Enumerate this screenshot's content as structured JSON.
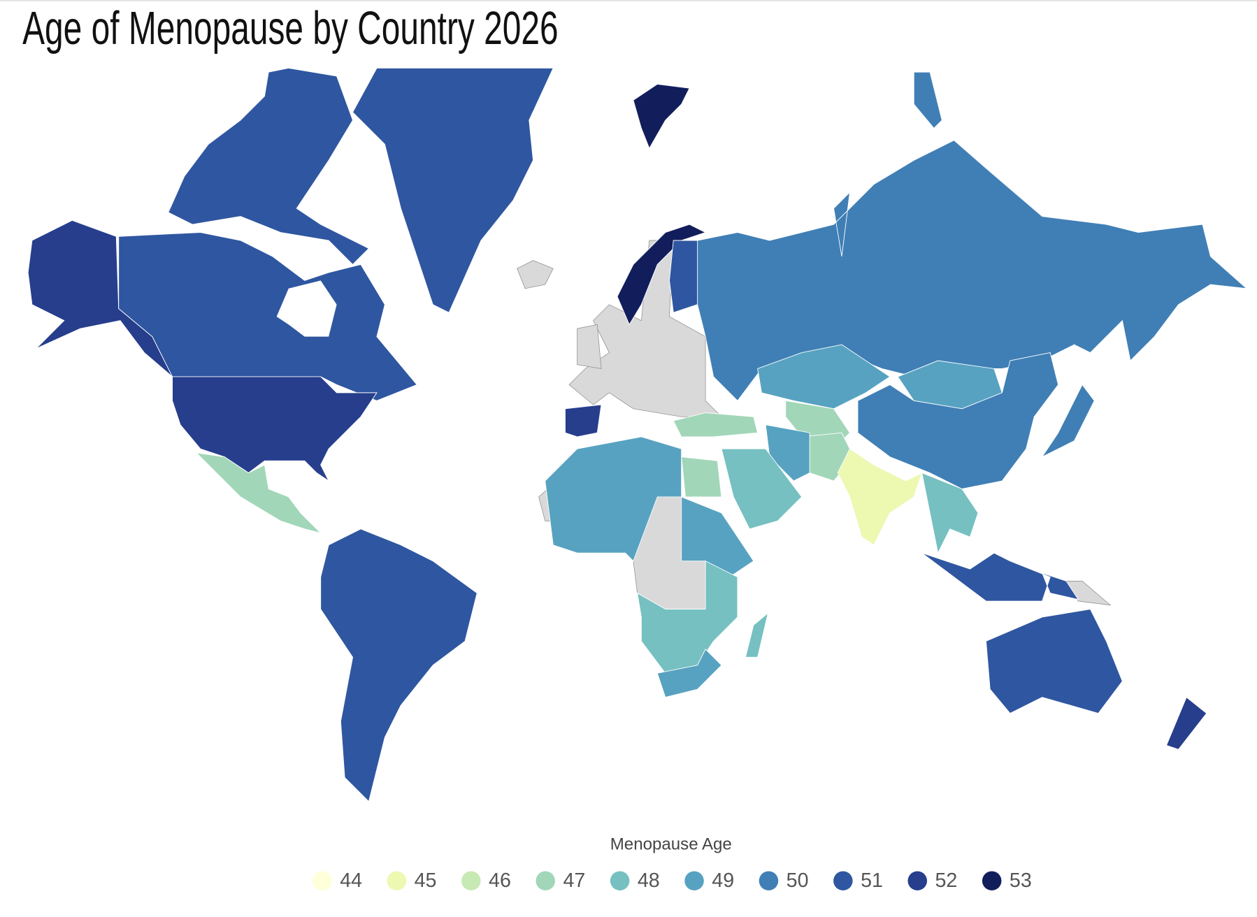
{
  "chart_data": {
    "type": "choropleth",
    "title": "Age of Menopause by Country 2026",
    "legend_title": "Menopause Age",
    "legend": {
      "values": [
        44,
        45,
        46,
        47,
        48,
        49,
        50,
        51,
        52,
        53
      ],
      "colors": [
        "#ffffd9",
        "#edf8b1",
        "#c7e9b4",
        "#a2d6b9",
        "#76c0c1",
        "#57a2c1",
        "#407fb5",
        "#2f56a0",
        "#263e8c",
        "#121e5c"
      ]
    },
    "regions": [
      52,
      51,
      51,
      51,
      52,
      47,
      51,
      53,
      53,
      51,
      52,
      50,
      49,
      49,
      50,
      47,
      47,
      45,
      49,
      47,
      48,
      48,
      51,
      50,
      51,
      49,
      47,
      48,
      49,
      48,
      51,
      52
    ]
  }
}
